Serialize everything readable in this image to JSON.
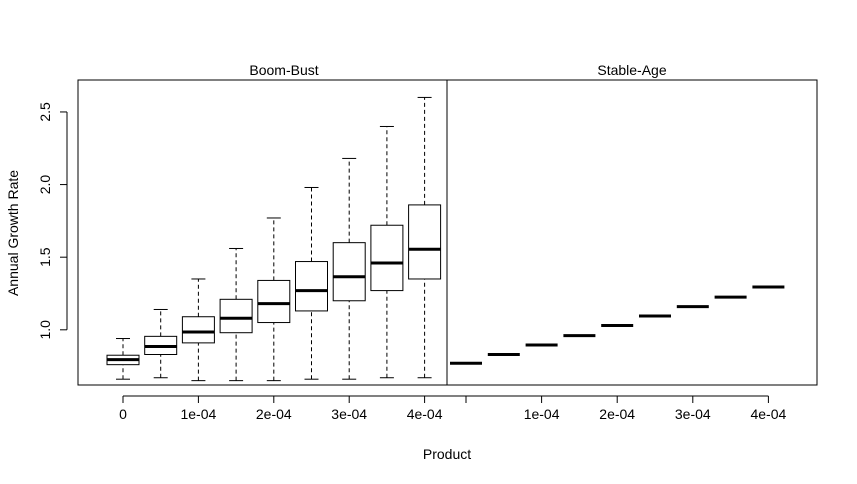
{
  "chart_data": {
    "type": "boxplot",
    "xlabel": "Product",
    "ylabel": "Annual Growth Rate",
    "ylim": [
      0.62,
      2.72
    ],
    "y_ticks": [
      "1.0",
      "1.5",
      "2.0",
      "2.5"
    ],
    "y_tick_values": [
      1.0,
      1.5,
      2.0,
      2.5
    ],
    "panels": [
      {
        "title": "Boom-Bust",
        "x_tick_labels": [
          "0",
          "1e-04",
          "2e-04",
          "3e-04",
          "4e-04"
        ],
        "boxes": [
          {
            "whisker_low": 0.66,
            "q1": 0.76,
            "median": 0.795,
            "q3": 0.825,
            "whisker_high": 0.94
          },
          {
            "whisker_low": 0.67,
            "q1": 0.83,
            "median": 0.885,
            "q3": 0.955,
            "whisker_high": 1.14
          },
          {
            "whisker_low": 0.65,
            "q1": 0.91,
            "median": 0.985,
            "q3": 1.09,
            "whisker_high": 1.35
          },
          {
            "whisker_low": 0.65,
            "q1": 0.98,
            "median": 1.08,
            "q3": 1.21,
            "whisker_high": 1.56
          },
          {
            "whisker_low": 0.65,
            "q1": 1.05,
            "median": 1.18,
            "q3": 1.34,
            "whisker_high": 1.77
          },
          {
            "whisker_low": 0.66,
            "q1": 1.13,
            "median": 1.27,
            "q3": 1.47,
            "whisker_high": 1.98
          },
          {
            "whisker_low": 0.66,
            "q1": 1.2,
            "median": 1.365,
            "q3": 1.6,
            "whisker_high": 2.18
          },
          {
            "whisker_low": 0.67,
            "q1": 1.27,
            "median": 1.46,
            "q3": 1.72,
            "whisker_high": 2.4
          },
          {
            "whisker_low": 0.67,
            "q1": 1.35,
            "median": 1.555,
            "q3": 1.86,
            "whisker_high": 2.6
          }
        ]
      },
      {
        "title": "Stable-Age",
        "x_tick_labels": [
          "",
          "1e-04",
          "2e-04",
          "3e-04",
          "4e-04"
        ],
        "boxes": [
          {
            "whisker_low": 0.77,
            "q1": 0.77,
            "median": 0.77,
            "q3": 0.77,
            "whisker_high": 0.77
          },
          {
            "whisker_low": 0.83,
            "q1": 0.83,
            "median": 0.83,
            "q3": 0.83,
            "whisker_high": 0.83
          },
          {
            "whisker_low": 0.895,
            "q1": 0.895,
            "median": 0.895,
            "q3": 0.895,
            "whisker_high": 0.895
          },
          {
            "whisker_low": 0.96,
            "q1": 0.96,
            "median": 0.96,
            "q3": 0.96,
            "whisker_high": 0.96
          },
          {
            "whisker_low": 1.03,
            "q1": 1.03,
            "median": 1.03,
            "q3": 1.03,
            "whisker_high": 1.03
          },
          {
            "whisker_low": 1.095,
            "q1": 1.095,
            "median": 1.095,
            "q3": 1.095,
            "whisker_high": 1.095
          },
          {
            "whisker_low": 1.16,
            "q1": 1.16,
            "median": 1.16,
            "q3": 1.16,
            "whisker_high": 1.16
          },
          {
            "whisker_low": 1.225,
            "q1": 1.225,
            "median": 1.225,
            "q3": 1.225,
            "whisker_high": 1.225
          },
          {
            "whisker_low": 1.295,
            "q1": 1.295,
            "median": 1.295,
            "q3": 1.295,
            "whisker_high": 1.295
          }
        ]
      }
    ]
  }
}
